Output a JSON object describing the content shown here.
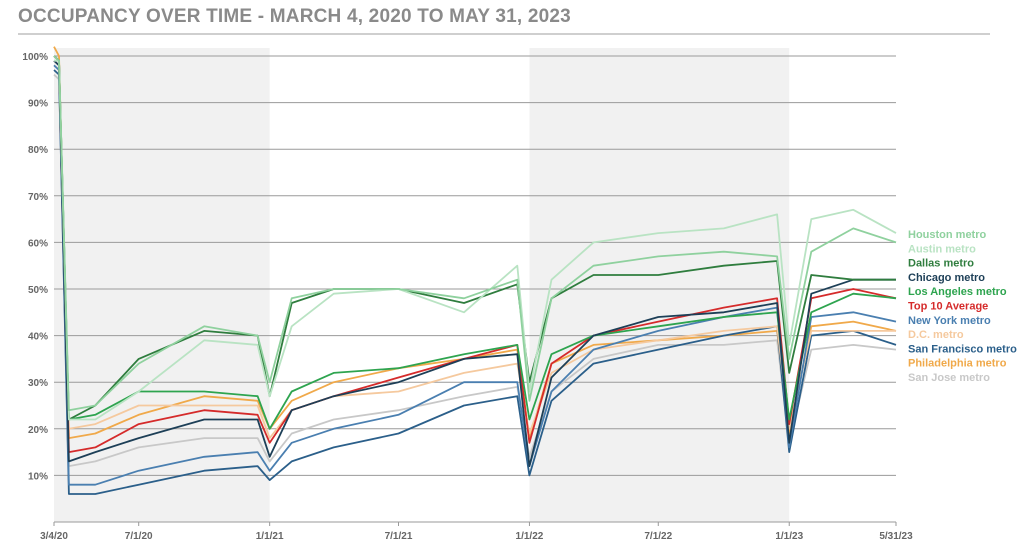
{
  "title": "OCCUPANCY OVER TIME - MARCH 4, 2020 TO MAY 31, 2023",
  "chart_data": {
    "type": "line",
    "title": "OCCUPANCY OVER TIME - MARCH 4, 2020 TO MAY 31, 2023",
    "xlabel": "",
    "ylabel": "",
    "x_ticks": [
      "3/4/20",
      "7/1/20",
      "1/1/21",
      "7/1/21",
      "1/1/22",
      "7/1/22",
      "1/1/23",
      "5/31/23"
    ],
    "y_ticks": [
      "10%",
      "20%",
      "30%",
      "40%",
      "50%",
      "60%",
      "70%",
      "80%",
      "90%",
      "100%"
    ],
    "ylim": [
      0,
      100
    ],
    "grid": true,
    "legend_position": "right",
    "x": [
      "3/4/20",
      "3/11/20",
      "3/25/20",
      "5/1/20",
      "7/1/20",
      "10/1/20",
      "12/15/20",
      "1/1/21",
      "2/1/21",
      "4/1/21",
      "7/1/21",
      "10/1/21",
      "12/15/21",
      "1/1/22",
      "2/1/22",
      "4/1/22",
      "7/1/22",
      "10/1/22",
      "12/15/22",
      "1/1/23",
      "2/1/23",
      "4/1/23",
      "5/31/23"
    ],
    "series": [
      {
        "name": "Houston metro",
        "color": "#8fd19e",
        "values": [
          100,
          99,
          24,
          25,
          34,
          42,
          40,
          30,
          48,
          50,
          50,
          48,
          52,
          26,
          48,
          55,
          57,
          58,
          57,
          35,
          58,
          63,
          60
        ]
      },
      {
        "name": "Austin metro",
        "color": "#b9e3c3",
        "values": [
          99,
          99,
          22,
          22,
          28,
          39,
          38,
          27,
          42,
          49,
          50,
          45,
          55,
          28,
          52,
          60,
          62,
          63,
          66,
          38,
          65,
          67,
          62
        ]
      },
      {
        "name": "Dallas metro",
        "color": "#2f7d3e",
        "values": [
          100,
          99,
          22,
          25,
          35,
          41,
          40,
          27,
          47,
          50,
          50,
          47,
          51,
          30,
          48,
          53,
          53,
          55,
          56,
          32,
          53,
          52,
          52
        ]
      },
      {
        "name": "Chicago metro",
        "color": "#1d3f57",
        "values": [
          99,
          98,
          13,
          15,
          18,
          22,
          22,
          14,
          24,
          27,
          30,
          35,
          36,
          12,
          31,
          40,
          44,
          45,
          47,
          17,
          49,
          52,
          52
        ]
      },
      {
        "name": "Los Angeles metro",
        "color": "#2ea44f",
        "values": [
          100,
          99,
          22,
          23,
          28,
          28,
          27,
          20,
          28,
          32,
          33,
          36,
          38,
          22,
          36,
          40,
          42,
          44,
          45,
          22,
          45,
          49,
          48
        ]
      },
      {
        "name": "Top 10 Average",
        "color": "#d52b2b",
        "values": [
          100,
          99,
          15,
          16,
          21,
          24,
          23,
          17,
          24,
          27,
          31,
          35,
          38,
          17,
          34,
          40,
          43,
          46,
          48,
          21,
          48,
          50,
          48
        ]
      },
      {
        "name": "New York metro",
        "color": "#4a7fb0",
        "values": [
          98,
          97,
          8,
          8,
          11,
          14,
          15,
          11,
          17,
          20,
          23,
          30,
          30,
          12,
          28,
          37,
          41,
          44,
          46,
          16,
          44,
          45,
          43
        ]
      },
      {
        "name": "D.C. metro",
        "color": "#f5c99e",
        "values": [
          99,
          98,
          20,
          21,
          25,
          25,
          25,
          18,
          24,
          27,
          28,
          32,
          34,
          19,
          32,
          37,
          39,
          41,
          42,
          20,
          41,
          41,
          41
        ]
      },
      {
        "name": "San Francisco metro",
        "color": "#2b5f8a",
        "values": [
          97,
          96,
          6,
          6,
          8,
          11,
          12,
          9,
          13,
          16,
          19,
          25,
          27,
          10,
          26,
          34,
          37,
          40,
          42,
          15,
          40,
          41,
          38
        ]
      },
      {
        "name": "Philadelphia metro",
        "color": "#f0a94a",
        "values": [
          102,
          100,
          18,
          19,
          23,
          27,
          26,
          20,
          26,
          30,
          33,
          35,
          37,
          18,
          34,
          38,
          39,
          40,
          41,
          19,
          42,
          43,
          41
        ]
      },
      {
        "name": "San Jose metro",
        "color": "#c8c8c8",
        "values": [
          96,
          95,
          12,
          13,
          16,
          18,
          18,
          13,
          19,
          22,
          24,
          27,
          29,
          14,
          28,
          35,
          38,
          38,
          39,
          17,
          37,
          38,
          37
        ]
      }
    ]
  }
}
